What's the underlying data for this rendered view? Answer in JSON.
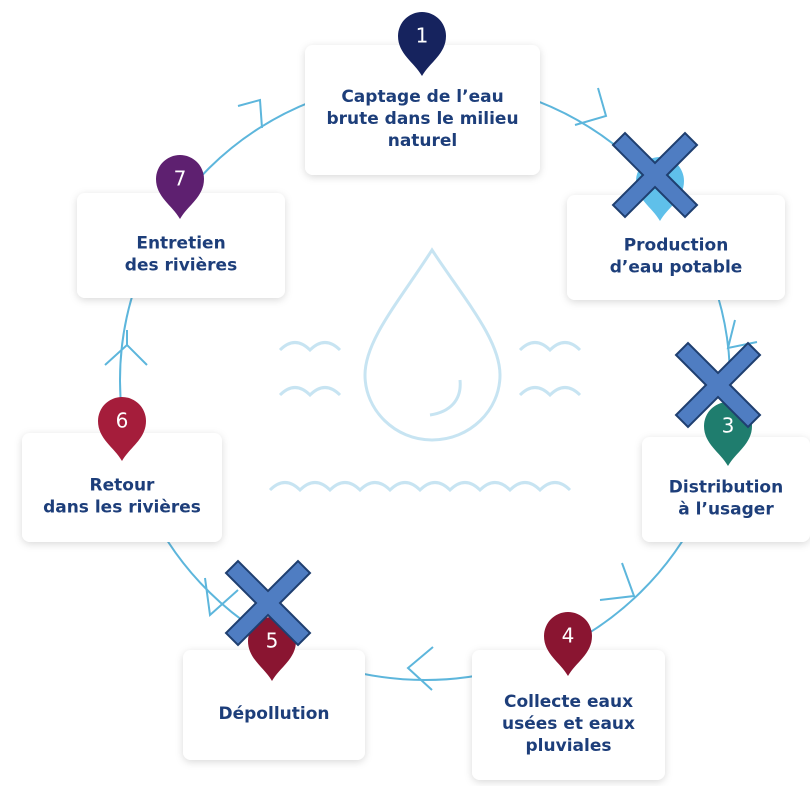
{
  "nodes": [
    {
      "number": "1",
      "label": [
        "Captage de l’eau",
        "brute dans le milieu",
        "naturel"
      ]
    },
    {
      "label": [
        "Production",
        "d’eau potable"
      ]
    },
    {
      "number": "3",
      "label": [
        "Distribution",
        "à l’usager"
      ]
    },
    {
      "number": "4",
      "label": [
        "Collecte eaux",
        "usées et eaux",
        "pluviales"
      ]
    },
    {
      "number": "5",
      "label": [
        "Dépollution"
      ]
    },
    {
      "number": "6",
      "label": [
        "Retour",
        "dans les rivières"
      ]
    },
    {
      "number": "7",
      "label": [
        "Entretien",
        "des rivières"
      ]
    }
  ]
}
